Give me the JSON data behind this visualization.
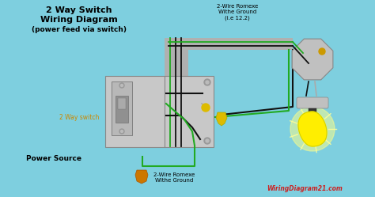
{
  "title_line1": "2 Way Switch",
  "title_line2": "Wiring Diagram",
  "title_line3": "(power feed via switch)",
  "label_switch": "2 Way switch",
  "label_power": "Power Source",
  "label_romex_top": "2-Wire Romexe\nWithe Ground\n(i.e 12.2)",
  "label_romex_bottom": "2-Wire Romexe\nWithe Ground",
  "bg_color": "#7ecfdf",
  "title_color": "#000000",
  "switch_label_color": "#cc8800",
  "power_label_color": "#000000",
  "wire_black": "#111111",
  "wire_green": "#22aa22",
  "wire_gray": "#aaaaaa",
  "bulb_yellow": "#ffee00",
  "bulb_glow": "#ffff88",
  "orange_conn": "#cc7700",
  "yellow_conn": "#ddbb00",
  "watermark": "WiringDiagram21.com",
  "watermark_color": "#cc2222",
  "conduit_color": "#b0b0b0",
  "box_face": "#c8c8c8",
  "box_edge": "#888888",
  "switch_plate": "#b8b8b8",
  "fixture_box": "#c0c0c0"
}
